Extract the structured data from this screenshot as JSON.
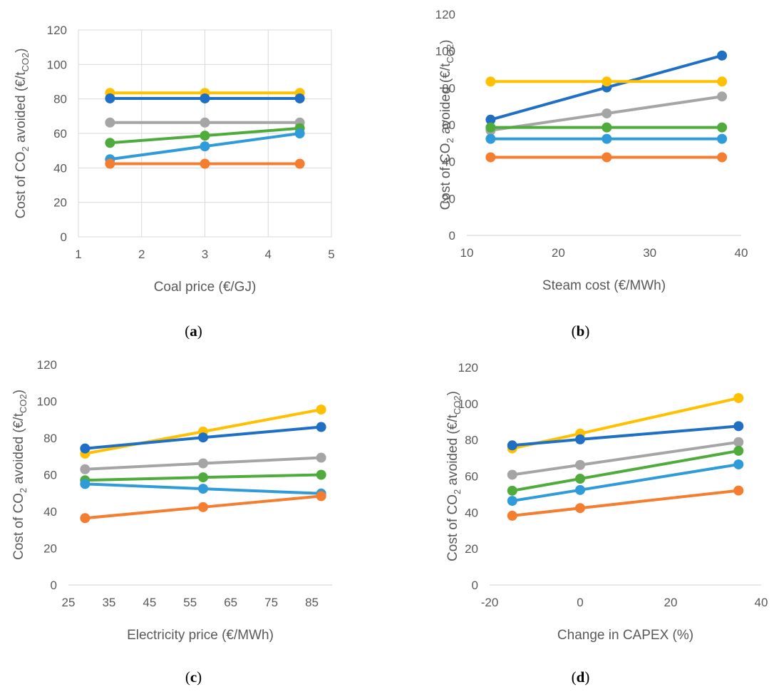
{
  "chart_data": [
    {
      "type": "line",
      "panel_label": "a",
      "xlabel": "Coal price (€/GJ)",
      "ylabel": {
        "prefix": "Cost of CO",
        "sub1": "2",
        "mid": " avoided (€/t",
        "sub2": "CO2",
        "suffix": ")"
      },
      "xlim": [
        1,
        5
      ],
      "xticks": [
        1,
        2,
        3,
        4,
        5
      ],
      "ylim": [
        0,
        120
      ],
      "yticks": [
        0,
        20,
        40,
        60,
        80,
        100,
        120
      ],
      "grid": true,
      "series": [
        {
          "color": "#FFC000",
          "x": [
            1.5,
            3,
            4.5
          ],
          "y": [
            83.5,
            83.5,
            83.5
          ]
        },
        {
          "color": "#1F6FC5",
          "x": [
            1.5,
            3,
            4.5
          ],
          "y": [
            80.3,
            80.3,
            80.3
          ]
        },
        {
          "color": "#A5A5A5",
          "x": [
            1.5,
            3,
            4.5
          ],
          "y": [
            66.3,
            66.3,
            66.3
          ]
        },
        {
          "color": "#4EAB3C",
          "x": [
            1.5,
            3,
            4.5
          ],
          "y": [
            54.5,
            58.7,
            63.0
          ]
        },
        {
          "color": "#2F9BD8",
          "x": [
            1.5,
            3,
            4.5
          ],
          "y": [
            45.0,
            52.5,
            60.0
          ]
        },
        {
          "color": "#F47D30",
          "x": [
            1.5,
            3,
            4.5
          ],
          "y": [
            42.4,
            42.4,
            42.4
          ]
        }
      ]
    },
    {
      "type": "line",
      "panel_label": "b",
      "xlabel": "Steam cost (€/MWh)",
      "ylabel": {
        "prefix": "Cost of CO",
        "sub1": "2",
        "mid": " avoided (€/t",
        "sub2": "CO2",
        "suffix": ")"
      },
      "xlim": [
        10,
        40
      ],
      "xticks": [
        10,
        20,
        30,
        40
      ],
      "ylim": [
        0,
        120
      ],
      "yticks": [
        0,
        20,
        40,
        60,
        80,
        100,
        120
      ],
      "grid": false,
      "series": [
        {
          "color": "#1F6FC5",
          "x": [
            12.6,
            25.3,
            37.9
          ],
          "y": [
            62.8,
            80.3,
            97.6
          ]
        },
        {
          "color": "#FFC000",
          "x": [
            12.6,
            25.3,
            37.9
          ],
          "y": [
            83.5,
            83.5,
            83.5
          ]
        },
        {
          "color": "#A5A5A5",
          "x": [
            12.6,
            25.3,
            37.9
          ],
          "y": [
            57.0,
            66.2,
            75.4
          ]
        },
        {
          "color": "#4EAB3C",
          "x": [
            12.6,
            25.3,
            37.9
          ],
          "y": [
            58.6,
            58.6,
            58.6
          ]
        },
        {
          "color": "#2F9BD8",
          "x": [
            12.6,
            25.3,
            37.9
          ],
          "y": [
            52.4,
            52.4,
            52.4
          ]
        },
        {
          "color": "#F47D30",
          "x": [
            12.6,
            25.3,
            37.9
          ],
          "y": [
            42.4,
            42.4,
            42.4
          ]
        }
      ]
    },
    {
      "type": "line",
      "panel_label": "c",
      "xlabel": "Electricity price (€/MWh)",
      "ylabel": {
        "prefix": "Cost of CO",
        "sub1": "2",
        "mid": " avoided (€/t",
        "sub2": "CO2",
        "suffix": ")"
      },
      "xlim": [
        25,
        90
      ],
      "xticks": [
        25,
        35,
        45,
        55,
        65,
        75,
        85
      ],
      "ylim": [
        0,
        120
      ],
      "yticks": [
        0,
        20,
        40,
        60,
        80,
        100,
        120
      ],
      "grid": false,
      "series": [
        {
          "color": "#FFC000",
          "x": [
            29.1,
            58.2,
            87.3
          ],
          "y": [
            71.5,
            83.5,
            95.5
          ]
        },
        {
          "color": "#1F6FC5",
          "x": [
            29.1,
            58.2,
            87.3
          ],
          "y": [
            74.3,
            80.3,
            86.0
          ]
        },
        {
          "color": "#A5A5A5",
          "x": [
            29.1,
            58.2,
            87.3
          ],
          "y": [
            63.0,
            66.2,
            69.3
          ]
        },
        {
          "color": "#4EAB3C",
          "x": [
            29.1,
            58.2,
            87.3
          ],
          "y": [
            57.0,
            58.6,
            60.0
          ]
        },
        {
          "color": "#2F9BD8",
          "x": [
            29.1,
            58.2,
            87.3
          ],
          "y": [
            55.0,
            52.4,
            49.8
          ]
        },
        {
          "color": "#F47D30",
          "x": [
            29.1,
            58.2,
            87.3
          ],
          "y": [
            36.4,
            42.4,
            48.4
          ]
        }
      ]
    },
    {
      "type": "line",
      "panel_label": "d",
      "xlabel": "Change in CAPEX (%)",
      "ylabel": {
        "prefix": "Cost of CO",
        "sub1": "2",
        "mid": " avoided (€/t",
        "sub2": "CO2",
        "suffix": ")"
      },
      "xlim": [
        -20,
        40
      ],
      "xticks": [
        -20,
        0,
        20,
        40
      ],
      "ylim": [
        0,
        120
      ],
      "yticks": [
        0,
        20,
        40,
        60,
        80,
        100,
        120
      ],
      "grid": false,
      "series": [
        {
          "color": "#FFC000",
          "x": [
            -15,
            0,
            35
          ],
          "y": [
            75.3,
            83.5,
            103.1
          ]
        },
        {
          "color": "#1F6FC5",
          "x": [
            -15,
            0,
            35
          ],
          "y": [
            77.0,
            80.3,
            87.6
          ]
        },
        {
          "color": "#A5A5A5",
          "x": [
            -15,
            0,
            35
          ],
          "y": [
            60.8,
            66.2,
            78.8
          ]
        },
        {
          "color": "#4EAB3C",
          "x": [
            -15,
            0,
            35
          ],
          "y": [
            52.0,
            58.6,
            74.0
          ]
        },
        {
          "color": "#2F9BD8",
          "x": [
            -15,
            0,
            35
          ],
          "y": [
            46.4,
            52.4,
            66.5
          ]
        },
        {
          "color": "#F47D30",
          "x": [
            -15,
            0,
            35
          ],
          "y": [
            38.2,
            42.4,
            52.1
          ]
        }
      ]
    }
  ]
}
